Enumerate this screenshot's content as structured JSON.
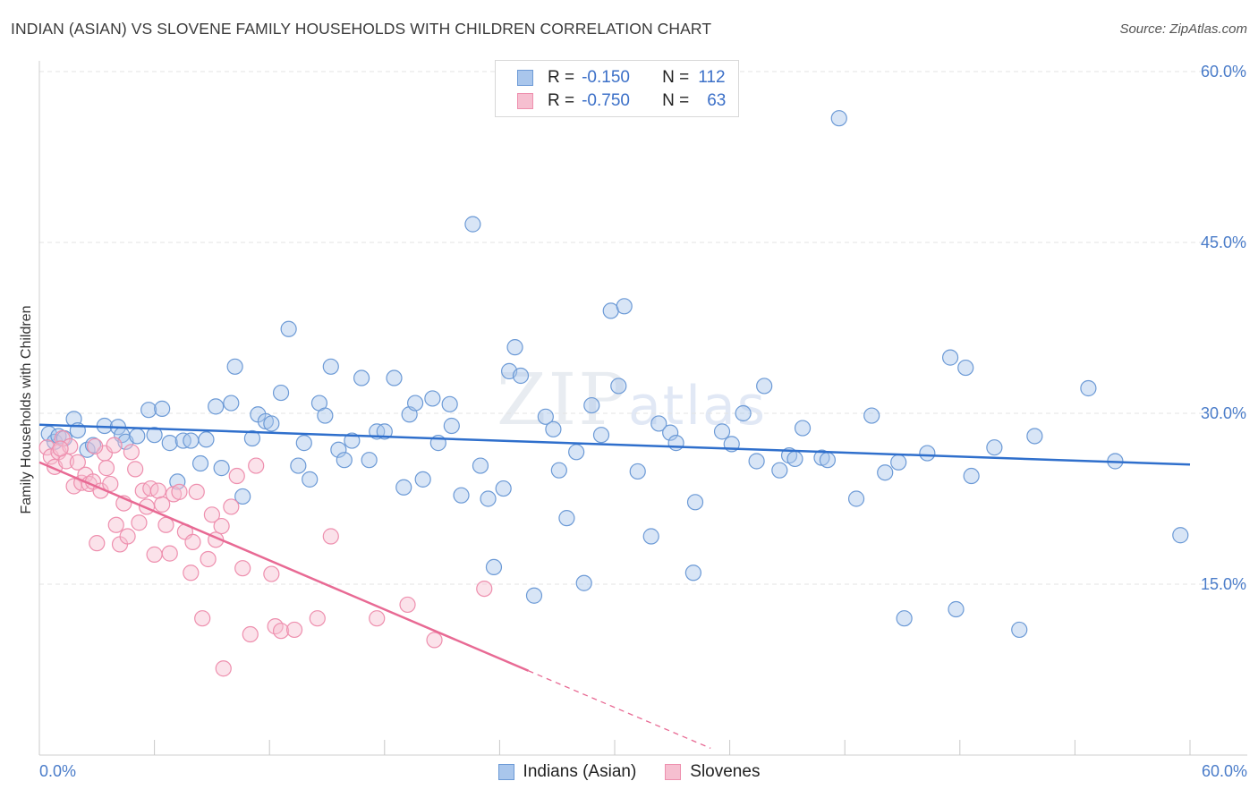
{
  "title": "INDIAN (ASIAN) VS SLOVENE FAMILY HOUSEHOLDS WITH CHILDREN CORRELATION CHART",
  "source": "Source: ZipAtlas.com",
  "watermark": {
    "zip": "ZIP",
    "atlas": "atlas"
  },
  "colors": {
    "blue_fill": "#a9c6ec",
    "blue_stroke": "#6c9ad6",
    "blue_line": "#2f6fcc",
    "pink_fill": "#f6bfd0",
    "pink_stroke": "#ee8fae",
    "pink_line": "#e86a94",
    "axis_text": "#4a7cc9",
    "grid": "#e3e3e3"
  },
  "legend_top": [
    {
      "r_label": "R =",
      "r_value": "-0.150",
      "n_label": "N =",
      "n_value": "112",
      "color": "blue"
    },
    {
      "r_label": "R =",
      "r_value": "-0.750",
      "n_label": "N =",
      "n_value": "63",
      "color": "pink"
    }
  ],
  "legend_bottom": [
    {
      "label": "Indians (Asian)",
      "color": "blue"
    },
    {
      "label": "Slovenes",
      "color": "pink"
    }
  ],
  "chart_data": {
    "type": "scatter",
    "title": "INDIAN (ASIAN) VS SLOVENE FAMILY HOUSEHOLDS WITH CHILDREN CORRELATION CHART",
    "ylabel": "Family Households with Children",
    "xlabel": "",
    "xlim": [
      0,
      60
    ],
    "ylim": [
      0,
      60
    ],
    "x_tick_labels": [
      "0.0%",
      "60.0%"
    ],
    "y_ticks": [
      15,
      30,
      45,
      60
    ],
    "y_tick_labels": [
      "15.0%",
      "30.0%",
      "45.0%",
      "60.0%"
    ],
    "grid": true,
    "legend_placement": "top-center",
    "series": [
      {
        "name": "Indians (Asian)",
        "color": "blue",
        "R": -0.15,
        "N": 112,
        "trend": {
          "x": [
            0,
            60
          ],
          "y": [
            29.0,
            25.5
          ]
        },
        "points": [
          [
            0.5,
            28.2
          ],
          [
            0.8,
            27.5
          ],
          [
            1.0,
            28.0
          ],
          [
            1.3,
            27.8
          ],
          [
            1.8,
            29.5
          ],
          [
            2.0,
            28.5
          ],
          [
            2.5,
            26.8
          ],
          [
            2.8,
            27.2
          ],
          [
            3.4,
            28.9
          ],
          [
            4.1,
            28.8
          ],
          [
            4.3,
            28.1
          ],
          [
            4.5,
            27.5
          ],
          [
            5.1,
            28.0
          ],
          [
            5.7,
            30.3
          ],
          [
            6.0,
            28.1
          ],
          [
            6.4,
            30.4
          ],
          [
            6.8,
            27.4
          ],
          [
            7.2,
            24.0
          ],
          [
            7.5,
            27.6
          ],
          [
            7.9,
            27.6
          ],
          [
            8.4,
            25.6
          ],
          [
            8.7,
            27.7
          ],
          [
            9.2,
            30.6
          ],
          [
            9.5,
            25.2
          ],
          [
            10.0,
            30.9
          ],
          [
            10.2,
            34.1
          ],
          [
            10.6,
            22.7
          ],
          [
            11.1,
            27.8
          ],
          [
            11.4,
            29.9
          ],
          [
            11.8,
            29.3
          ],
          [
            12.1,
            29.1
          ],
          [
            12.6,
            31.8
          ],
          [
            13.0,
            37.4
          ],
          [
            13.5,
            25.4
          ],
          [
            13.8,
            27.4
          ],
          [
            14.1,
            24.2
          ],
          [
            14.6,
            30.9
          ],
          [
            14.9,
            29.8
          ],
          [
            15.2,
            34.1
          ],
          [
            15.6,
            26.8
          ],
          [
            15.9,
            25.9
          ],
          [
            16.3,
            27.6
          ],
          [
            16.8,
            33.1
          ],
          [
            17.2,
            25.9
          ],
          [
            17.6,
            28.4
          ],
          [
            18.0,
            28.4
          ],
          [
            18.5,
            33.1
          ],
          [
            19.0,
            23.5
          ],
          [
            19.3,
            29.9
          ],
          [
            19.6,
            30.9
          ],
          [
            20.0,
            24.2
          ],
          [
            20.5,
            31.3
          ],
          [
            20.8,
            27.4
          ],
          [
            21.5,
            28.9
          ],
          [
            21.4,
            30.8
          ],
          [
            22.0,
            22.8
          ],
          [
            22.6,
            46.6
          ],
          [
            23.0,
            25.4
          ],
          [
            23.4,
            22.5
          ],
          [
            23.7,
            16.5
          ],
          [
            24.2,
            23.4
          ],
          [
            24.5,
            33.7
          ],
          [
            24.8,
            35.8
          ],
          [
            25.1,
            33.3
          ],
          [
            25.8,
            14.0
          ],
          [
            26.4,
            29.7
          ],
          [
            26.8,
            28.6
          ],
          [
            27.1,
            25.0
          ],
          [
            27.5,
            20.8
          ],
          [
            28.0,
            26.6
          ],
          [
            28.4,
            15.1
          ],
          [
            28.8,
            30.7
          ],
          [
            29.3,
            28.1
          ],
          [
            29.8,
            39.0
          ],
          [
            30.2,
            32.4
          ],
          [
            30.5,
            39.4
          ],
          [
            31.2,
            24.9
          ],
          [
            31.9,
            19.2
          ],
          [
            32.3,
            29.1
          ],
          [
            32.9,
            28.3
          ],
          [
            33.2,
            27.4
          ],
          [
            34.1,
            16.0
          ],
          [
            34.2,
            22.2
          ],
          [
            35.6,
            28.4
          ],
          [
            36.1,
            27.3
          ],
          [
            36.7,
            30.0
          ],
          [
            37.4,
            25.8
          ],
          [
            37.8,
            32.4
          ],
          [
            38.6,
            25.0
          ],
          [
            39.1,
            26.3
          ],
          [
            39.4,
            26.0
          ],
          [
            39.8,
            28.7
          ],
          [
            40.8,
            26.1
          ],
          [
            41.1,
            25.9
          ],
          [
            41.7,
            55.9
          ],
          [
            42.6,
            22.5
          ],
          [
            43.4,
            29.8
          ],
          [
            44.1,
            24.8
          ],
          [
            44.8,
            25.7
          ],
          [
            45.1,
            12.0
          ],
          [
            46.3,
            26.5
          ],
          [
            47.5,
            34.9
          ],
          [
            47.8,
            12.8
          ],
          [
            48.3,
            34.0
          ],
          [
            48.6,
            24.5
          ],
          [
            49.8,
            27.0
          ],
          [
            51.1,
            11.0
          ],
          [
            51.9,
            28.0
          ],
          [
            54.7,
            32.2
          ],
          [
            56.1,
            25.8
          ],
          [
            59.5,
            19.3
          ]
        ]
      },
      {
        "name": "Slovenes",
        "color": "pink",
        "R": -0.75,
        "N": 63,
        "trend": {
          "x": [
            0,
            25.5
          ],
          "y": [
            25.7,
            7.4
          ]
        },
        "trend_dashed": {
          "x": [
            25.5,
            35.0
          ],
          "y": [
            7.4,
            0.6
          ]
        },
        "points": [
          [
            0.4,
            27.0
          ],
          [
            0.6,
            26.2
          ],
          [
            0.8,
            25.3
          ],
          [
            1.0,
            26.6
          ],
          [
            1.2,
            27.8
          ],
          [
            1.4,
            25.8
          ],
          [
            1.6,
            27.1
          ],
          [
            1.8,
            23.6
          ],
          [
            2.0,
            25.7
          ],
          [
            2.2,
            23.9
          ],
          [
            2.4,
            24.6
          ],
          [
            2.6,
            23.8
          ],
          [
            2.8,
            24.0
          ],
          [
            3.0,
            18.6
          ],
          [
            3.2,
            23.2
          ],
          [
            3.4,
            26.5
          ],
          [
            3.5,
            25.2
          ],
          [
            3.7,
            23.8
          ],
          [
            3.9,
            27.2
          ],
          [
            4.0,
            20.2
          ],
          [
            4.2,
            18.5
          ],
          [
            4.4,
            22.1
          ],
          [
            4.6,
            19.2
          ],
          [
            4.8,
            26.6
          ],
          [
            5.0,
            25.1
          ],
          [
            5.2,
            20.4
          ],
          [
            5.4,
            23.2
          ],
          [
            5.6,
            21.8
          ],
          [
            5.8,
            23.4
          ],
          [
            6.0,
            17.6
          ],
          [
            6.2,
            23.2
          ],
          [
            6.4,
            22.0
          ],
          [
            6.6,
            20.2
          ],
          [
            6.8,
            17.7
          ],
          [
            7.0,
            22.9
          ],
          [
            7.3,
            23.1
          ],
          [
            7.6,
            19.6
          ],
          [
            7.9,
            16.0
          ],
          [
            8.0,
            18.7
          ],
          [
            8.2,
            23.1
          ],
          [
            8.5,
            12.0
          ],
          [
            8.8,
            17.2
          ],
          [
            9.0,
            21.1
          ],
          [
            9.2,
            18.9
          ],
          [
            9.5,
            20.1
          ],
          [
            9.6,
            7.6
          ],
          [
            10.0,
            21.8
          ],
          [
            10.3,
            24.5
          ],
          [
            10.6,
            16.4
          ],
          [
            11.0,
            10.6
          ],
          [
            11.3,
            25.4
          ],
          [
            12.1,
            15.9
          ],
          [
            12.3,
            11.3
          ],
          [
            12.6,
            10.9
          ],
          [
            13.3,
            11.0
          ],
          [
            14.5,
            12.0
          ],
          [
            15.2,
            19.2
          ],
          [
            17.6,
            12.0
          ],
          [
            19.2,
            13.2
          ],
          [
            20.6,
            10.1
          ],
          [
            23.2,
            14.6
          ],
          [
            1.1,
            26.9
          ],
          [
            2.9,
            27.1
          ]
        ]
      }
    ]
  }
}
